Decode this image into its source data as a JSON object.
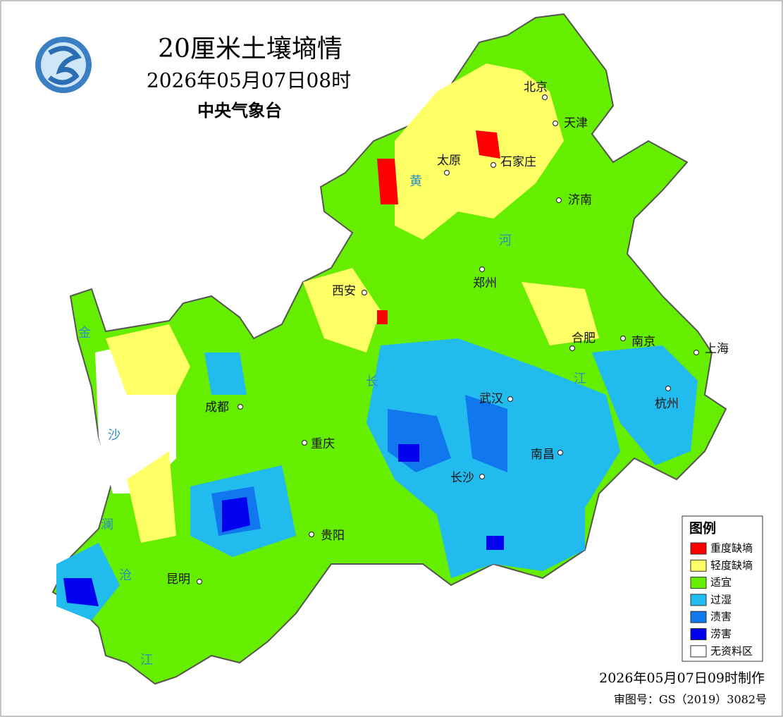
{
  "header": {
    "title": "20厘米土壤墒情",
    "subtitle": "2026年05月07日08时",
    "agency": "中央气象台"
  },
  "cities": [
    "北京",
    "天津",
    "太原",
    "石家庄",
    "济南",
    "西安",
    "郑州",
    "合肥",
    "南京",
    "上海",
    "成都",
    "武汉",
    "杭州",
    "重庆",
    "南昌",
    "长沙",
    "贵阳",
    "昆明"
  ],
  "rivers": [
    "黄",
    "河",
    "长",
    "江",
    "金",
    "沙",
    "澜",
    "沧",
    "江"
  ],
  "legend": {
    "title": "图例",
    "items": [
      {
        "label": "重度缺墒",
        "color": "#ff0000"
      },
      {
        "label": "轻度缺墒",
        "color": "#ffff66"
      },
      {
        "label": "适宜",
        "color": "#66ee00"
      },
      {
        "label": "过湿",
        "color": "#22bbee"
      },
      {
        "label": "渍害",
        "color": "#1177ee"
      },
      {
        "label": "涝害",
        "color": "#0000ee"
      },
      {
        "label": "无资料区",
        "color": "#ffffff"
      }
    ]
  },
  "footer": {
    "made": "2026年05月07日09时制作",
    "approval": "审图号：GS（2019）3082号"
  }
}
